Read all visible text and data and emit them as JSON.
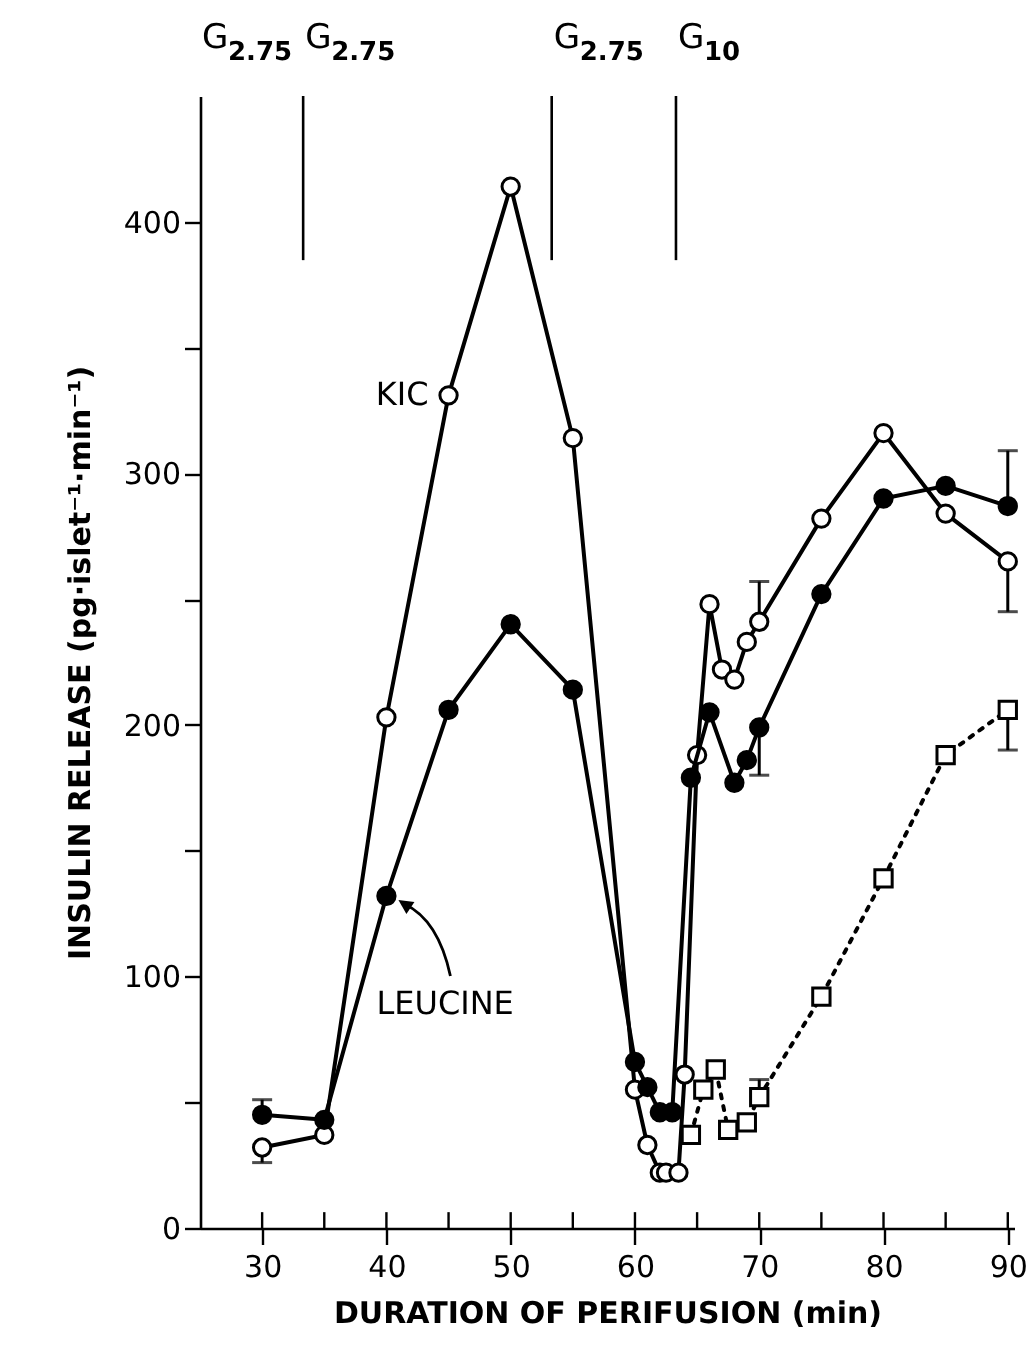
{
  "chart_data": {
    "type": "line",
    "xlabel": "DURATION OF PERIFUSION (min)",
    "ylabel": "INSULIN RELEASE (pg·islet⁻¹·min⁻¹)",
    "xlim": [
      25,
      90.5
    ],
    "ylim": [
      0,
      450
    ],
    "xticks": [
      30,
      {
        "value": 35,
        "label": null
      },
      40,
      {
        "value": 45,
        "label": null
      },
      50,
      {
        "value": 55,
        "label": null
      },
      60,
      {
        "value": 65,
        "label": null
      },
      70,
      {
        "value": 75,
        "label": null
      },
      80,
      {
        "value": 85,
        "label": null
      },
      90
    ],
    "yticks": [
      0,
      {
        "value": 50,
        "label": null
      },
      100,
      {
        "value": 150,
        "label": null
      },
      200,
      {
        "value": 250,
        "label": null
      },
      300,
      {
        "value": 350,
        "label": null
      },
      400
    ],
    "series": [
      {
        "color": "#000000",
        "marker": "circle",
        "line_style": "solid",
        "x": [
          30,
          35,
          40,
          45,
          50,
          55,
          60,
          61,
          62,
          62.5,
          63.5,
          64,
          65,
          66,
          67,
          68,
          69,
          70,
          75,
          80,
          85,
          90
        ],
        "values": [
          32,
          37,
          203,
          331,
          414,
          314,
          55,
          33,
          22,
          22,
          22,
          61,
          188,
          248,
          222,
          218,
          233,
          241,
          282,
          316,
          284,
          265
        ],
        "errors": [
          [
            26,
            32
          ],
          null,
          null,
          null,
          null,
          null,
          null,
          null,
          null,
          null,
          null,
          null,
          null,
          null,
          null,
          null,
          null,
          [
            241,
            257
          ],
          null,
          null,
          null,
          [
            245,
            265
          ]
        ]
      },
      {
        "color": "#000000",
        "marker": "circle",
        "line_style": "solid",
        "x": [
          30,
          35,
          40,
          45,
          50,
          55,
          60,
          61,
          62,
          63,
          64.5,
          66,
          68,
          69,
          70,
          75,
          80,
          85,
          90
        ],
        "values": [
          45,
          43,
          132,
          206,
          240,
          214,
          66,
          56,
          46,
          46,
          179,
          205,
          177,
          186,
          199,
          252,
          290,
          295,
          287
        ],
        "errors": [
          [
            45,
            51
          ],
          null,
          null,
          null,
          null,
          null,
          null,
          null,
          null,
          null,
          null,
          null,
          null,
          null,
          [
            180,
            199
          ],
          null,
          null,
          null,
          [
            287,
            309
          ]
        ]
      },
      {
        "color": "#000000",
        "marker": "square",
        "line_style": "dotted",
        "x": [
          64.5,
          65.5,
          66.5,
          67.5,
          69,
          70,
          75,
          80,
          85,
          90
        ],
        "values": [
          37,
          55,
          63,
          39,
          42,
          52,
          92,
          139,
          188,
          206
        ],
        "errors": [
          null,
          null,
          null,
          null,
          null,
          [
            52,
            59
          ],
          null,
          null,
          null,
          [
            190,
            206
          ]
        ]
      }
    ],
    "ref_lines": [
      {
        "axis": "x",
        "value": 33.3,
        "label": "G$_{2.75}$"
      },
      {
        "axis": "x",
        "value": 53.3,
        "label": "G$_{2.75}$"
      },
      {
        "axis": "x",
        "value": 63.3,
        "label": "G$_{10}$"
      }
    ],
    "annotations": [
      {
        "text": "KIC",
        "x": 45,
        "y": 331
      },
      {
        "text": "LEUCINE",
        "x": 40,
        "y": 132
      },
      "G$_{2.75}$"
    ]
  }
}
